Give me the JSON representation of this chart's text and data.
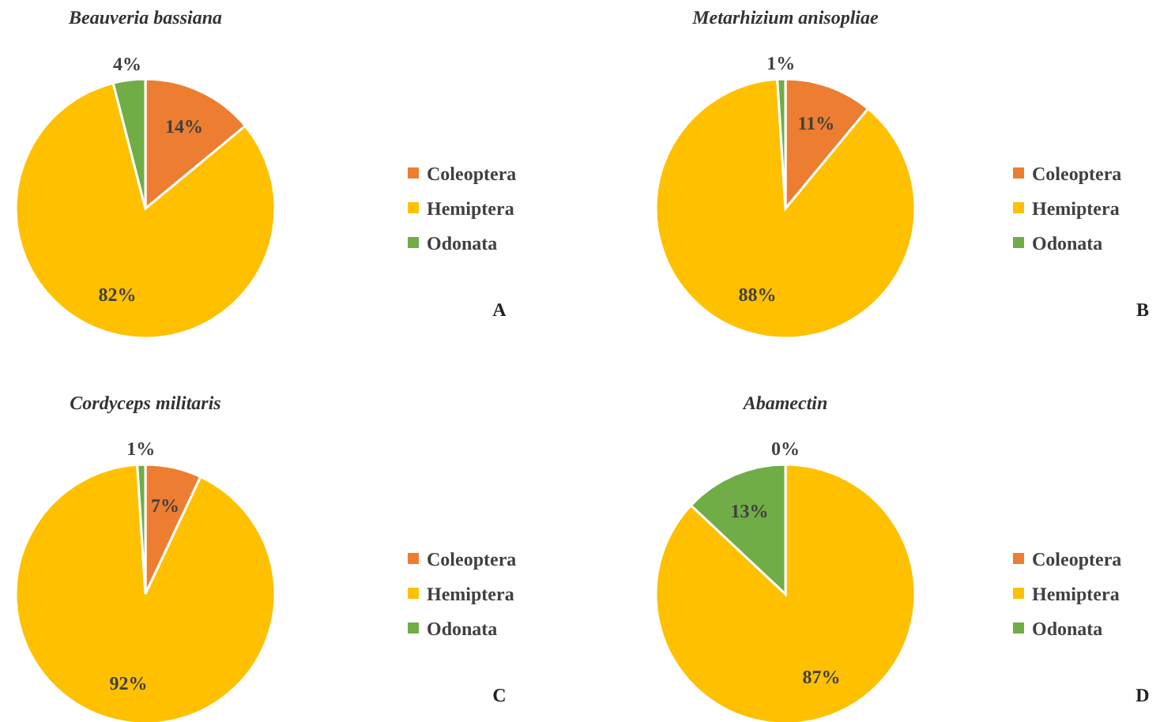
{
  "chart_data": [
    {
      "type": "pie",
      "title": "Beauveria bassiana",
      "categories": [
        "Coleoptera",
        "Hemiptera",
        "Odonata"
      ],
      "values": [
        14,
        82,
        4
      ],
      "value_labels": [
        "14%",
        "82%",
        "4%"
      ],
      "colors": [
        "#ed7d31",
        "#ffc000",
        "#70ad47"
      ],
      "legend": "right",
      "annotations": [
        "A"
      ]
    },
    {
      "type": "pie",
      "title": "Metarhizium anisopliae",
      "categories": [
        "Coleoptera",
        "Hemiptera",
        "Odonata"
      ],
      "values": [
        11,
        88,
        1
      ],
      "value_labels": [
        "11%",
        "88%",
        "1%"
      ],
      "colors": [
        "#ed7d31",
        "#ffc000",
        "#70ad47"
      ],
      "legend": "right",
      "annotations": [
        "B"
      ]
    },
    {
      "type": "pie",
      "title": "Cordyceps militaris",
      "categories": [
        "Coleoptera",
        "Hemiptera",
        "Odonata"
      ],
      "values": [
        7,
        92,
        1
      ],
      "value_labels": [
        "7%",
        "92%",
        "1%"
      ],
      "colors": [
        "#ed7d31",
        "#ffc000",
        "#70ad47"
      ],
      "legend": "right",
      "annotations": [
        "C"
      ]
    },
    {
      "type": "pie",
      "title": "Abamectin",
      "categories": [
        "Coleoptera",
        "Hemiptera",
        "Odonata"
      ],
      "values": [
        0,
        87,
        13
      ],
      "value_labels": [
        "0%",
        "87%",
        "13%"
      ],
      "colors": [
        "#ed7d31",
        "#ffc000",
        "#70ad47"
      ],
      "legend": "right",
      "annotations": [
        "D"
      ]
    }
  ]
}
